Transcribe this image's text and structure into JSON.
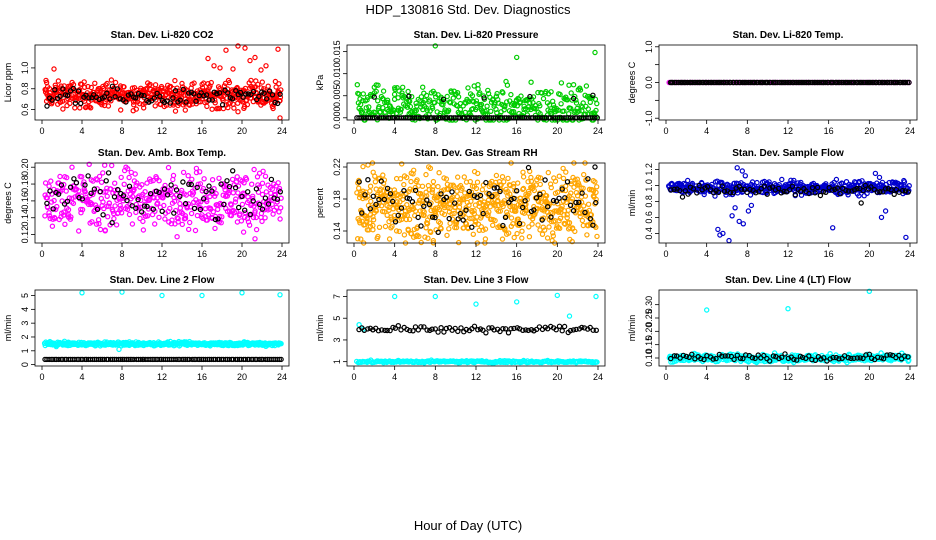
{
  "figure": {
    "title": "HDP_130816  Std. Dev. Diagnostics",
    "xlabel": "Hour of Day (UTC)"
  },
  "chart_data": [
    {
      "type": "scatter",
      "title": "Stan. Dev. Li-820 CO2",
      "ylabel": "Licor ppm",
      "xlim": [
        0,
        24
      ],
      "ylim": [
        0.5,
        1.22
      ],
      "xticks": [
        0,
        4,
        8,
        12,
        16,
        20,
        24
      ],
      "yticks": [
        0.6,
        0.8,
        1.0
      ],
      "ytick_labels": [
        "0.6",
        "0.8",
        "1.0"
      ],
      "colors": {
        "main": "#ff0000",
        "overlay": "#000000"
      },
      "series": [
        {
          "color": "#ff0000",
          "x_range": [
            0.3,
            23.9
          ],
          "center": 0.74,
          "spread": 0.06,
          "count": 520,
          "outliers": [
            [
              1.2,
              0.99
            ],
            [
              0.4,
              0.88
            ],
            [
              16.6,
              1.09
            ],
            [
              17.2,
              1.02
            ],
            [
              17.8,
              1.0
            ],
            [
              18.4,
              1.17
            ],
            [
              19.1,
              0.99
            ],
            [
              19.6,
              1.21
            ],
            [
              20.3,
              1.19
            ],
            [
              20.8,
              1.07
            ],
            [
              21.3,
              1.1
            ],
            [
              21.9,
              0.98
            ],
            [
              22.4,
              1.02
            ],
            [
              23.6,
              1.18
            ],
            [
              23.8,
              0.52
            ],
            [
              19.6,
              0.58
            ]
          ]
        },
        {
          "color": "#000000",
          "x_range": [
            0.5,
            23.8
          ],
          "center": 0.72,
          "spread": 0.04,
          "count": 90,
          "outliers": []
        }
      ]
    },
    {
      "type": "scatter",
      "title": "Stan. Dev. Li-820 Pressure",
      "ylabel": "kPa",
      "xlim": [
        0,
        24
      ],
      "ylim": [
        -0.0005,
        0.0165
      ],
      "xticks": [
        0,
        4,
        8,
        12,
        16,
        20,
        24
      ],
      "yticks": [
        0.0,
        0.005,
        0.01,
        0.015
      ],
      "ytick_labels": [
        "0.000",
        "0.005",
        "0.010",
        "0.015"
      ],
      "colors": {
        "main": "#00cd00",
        "overlay": "#000000"
      },
      "series": [
        {
          "color": "#00cd00",
          "x_range": [
            0.3,
            23.9
          ],
          "center": 0.0025,
          "spread": 0.0022,
          "count": 420,
          "outliers": [
            [
              8.0,
              0.0163
            ],
            [
              23.7,
              0.0148
            ],
            [
              16.0,
              0.0137
            ],
            [
              20.4,
              0.0079
            ],
            [
              12.2,
              0.0075
            ],
            [
              4.0,
              0.0068
            ]
          ]
        },
        {
          "color": "#000000",
          "x_range": [
            0.3,
            23.9
          ],
          "center": 0.0,
          "spread": 0.0,
          "count": 110,
          "outliers": [
            [
              2.0,
              0.0047
            ],
            [
              5.4,
              0.0049
            ],
            [
              12.8,
              0.0045
            ],
            [
              17.3,
              0.0048
            ],
            [
              21.6,
              0.0044
            ],
            [
              23.5,
              0.0051
            ],
            [
              8.8,
              0.0042
            ]
          ]
        }
      ]
    },
    {
      "type": "scatter",
      "title": "Stan. Dev. Li-820 Temp.",
      "ylabel": "degrees C",
      "xlim": [
        0,
        24
      ],
      "ylim": [
        -1.05,
        1.05
      ],
      "xticks": [
        0,
        4,
        8,
        12,
        16,
        20,
        24
      ],
      "yticks": [
        -1.0,
        -0.5,
        0.0,
        0.5,
        1.0
      ],
      "ytick_labels": [
        "-1.0",
        "",
        "0.0",
        "",
        "1.0"
      ],
      "colors": {
        "main": "#ff00ff",
        "overlay": "#000000"
      },
      "series": [
        {
          "color": "#ff00ff",
          "x_range": [
            0.3,
            23.9
          ],
          "center": 0.0,
          "spread": 0.0,
          "count": 80,
          "outliers": []
        },
        {
          "color": "#000000",
          "x_range": [
            0.4,
            23.9
          ],
          "center": 0.0,
          "spread": 0.0,
          "count": 150,
          "outliers": []
        }
      ]
    },
    {
      "type": "scatter",
      "title": "Stan. Dev. Amb. Box Temp.",
      "ylabel": "degrees C",
      "xlim": [
        0,
        24
      ],
      "ylim": [
        0.11,
        0.205
      ],
      "xticks": [
        0,
        4,
        8,
        12,
        16,
        20,
        24
      ],
      "yticks": [
        0.12,
        0.14,
        0.16,
        0.18,
        0.2
      ],
      "ytick_labels": [
        "0.12",
        "0.14",
        "0.16",
        "0.18",
        "0.20"
      ],
      "colors": {
        "main": "#ff00ff",
        "overlay": "#000000"
      },
      "series": [
        {
          "color": "#ff00ff",
          "x_range": [
            0.3,
            23.9
          ],
          "center": 0.162,
          "spread": 0.017,
          "count": 480,
          "outliers": [
            [
              21.3,
              0.115
            ],
            [
              3.0,
              0.2
            ]
          ]
        },
        {
          "color": "#000000",
          "x_range": [
            0.5,
            23.8
          ],
          "center": 0.162,
          "spread": 0.013,
          "count": 80,
          "outliers": []
        }
      ]
    },
    {
      "type": "scatter",
      "title": "Stan. Dev. Gas Stream RH",
      "ylabel": "percent",
      "xlim": [
        0,
        24
      ],
      "ylim": [
        0.125,
        0.225
      ],
      "xticks": [
        0,
        4,
        8,
        12,
        16,
        20,
        24
      ],
      "yticks": [
        0.14,
        0.18,
        0.22
      ],
      "ytick_labels": [
        "0.14",
        "0.18",
        "0.22"
      ],
      "colors": {
        "main": "#ffa500",
        "overlay": "#000000"
      },
      "series": [
        {
          "color": "#ffa500",
          "x_range": [
            0.3,
            23.9
          ],
          "center": 0.172,
          "spread": 0.022,
          "count": 700,
          "outliers": [
            [
              3.5,
              0.13
            ],
            [
              7.8,
              0.128
            ]
          ]
        },
        {
          "color": "#000000",
          "x_range": [
            0.5,
            23.8
          ],
          "center": 0.175,
          "spread": 0.017,
          "count": 85,
          "outliers": [
            [
              23.7,
              0.22
            ]
          ]
        }
      ]
    },
    {
      "type": "scatter",
      "title": "Stan. Dev. Sample Flow",
      "ylabel": "ml/min",
      "xlim": [
        0,
        24
      ],
      "ylim": [
        0.28,
        1.28
      ],
      "xticks": [
        0,
        4,
        8,
        12,
        16,
        20,
        24
      ],
      "yticks": [
        0.4,
        0.6,
        0.8,
        1.0,
        1.2
      ],
      "ytick_labels": [
        "0.4",
        "0.6",
        "0.8",
        "1.0",
        "1.2"
      ],
      "colors": {
        "main": "#0000cd",
        "overlay": "#000000"
      },
      "series": [
        {
          "color": "#0000cd",
          "x_range": [
            0.3,
            23.9
          ],
          "center": 0.97,
          "spread": 0.04,
          "count": 440,
          "outliers": [
            [
              5.1,
              0.45
            ],
            [
              5.3,
              0.38
            ],
            [
              5.6,
              0.4
            ],
            [
              6.2,
              0.31
            ],
            [
              6.5,
              0.62
            ],
            [
              7.2,
              0.55
            ],
            [
              7.6,
              0.52
            ],
            [
              7.0,
              1.22
            ],
            [
              7.5,
              1.18
            ],
            [
              7.8,
              1.12
            ],
            [
              8.1,
              0.68
            ],
            [
              8.4,
              0.75
            ],
            [
              6.8,
              0.72
            ],
            [
              16.4,
              0.47
            ],
            [
              21.2,
              0.6
            ],
            [
              21.6,
              0.68
            ],
            [
              20.6,
              1.15
            ],
            [
              21.0,
              1.1
            ],
            [
              23.6,
              0.35
            ]
          ]
        },
        {
          "color": "#000000",
          "x_range": [
            0.5,
            23.8
          ],
          "center": 0.94,
          "spread": 0.03,
          "count": 85,
          "outliers": [
            [
              19.2,
              0.78
            ]
          ]
        }
      ]
    },
    {
      "type": "scatter",
      "title": "Stan. Dev. Line 2 Flow",
      "ylabel": "ml/min",
      "xlim": [
        0,
        24
      ],
      "ylim": [
        -0.1,
        5.4
      ],
      "xticks": [
        0,
        4,
        8,
        12,
        16,
        20,
        24
      ],
      "yticks": [
        0,
        1,
        2,
        3,
        4,
        5
      ],
      "ytick_labels": [
        "0",
        "1",
        "2",
        "3",
        "4",
        "5"
      ],
      "colors": {
        "main": "#00ffff",
        "overlay": "#000000"
      },
      "series": [
        {
          "color": "#00ffff",
          "x_range": [
            0.3,
            23.9
          ],
          "center": 1.5,
          "spread": 0.07,
          "count": 420,
          "outliers": [
            [
              4.0,
              5.2
            ],
            [
              8.0,
              5.25
            ],
            [
              12.0,
              5.0
            ],
            [
              16.0,
              5.0
            ],
            [
              20.0,
              5.2
            ],
            [
              23.8,
              5.05
            ],
            [
              7.7,
              1.1
            ]
          ]
        },
        {
          "color": "#000000",
          "x_range": [
            0.3,
            23.9
          ],
          "center": 0.38,
          "spread": 0.0,
          "count": 120,
          "outliers": []
        }
      ]
    },
    {
      "type": "scatter",
      "title": "Stan. Dev. Line 3 Flow",
      "ylabel": "ml/min",
      "xlim": [
        0,
        24
      ],
      "ylim": [
        0.6,
        7.6
      ],
      "xticks": [
        0,
        4,
        8,
        12,
        16,
        20,
        24
      ],
      "yticks": [
        1,
        3,
        5,
        7
      ],
      "ytick_labels": [
        "1",
        "3",
        "5",
        "7"
      ],
      "colors": {
        "main": "#00ffff",
        "overlay": "#000000"
      },
      "series": [
        {
          "color": "#00ffff",
          "x_range": [
            0.3,
            23.9
          ],
          "center": 1.0,
          "spread": 0.05,
          "count": 240,
          "outliers": [
            [
              4.0,
              7.0
            ],
            [
              8.0,
              7.0
            ],
            [
              12.0,
              6.3
            ],
            [
              16.0,
              6.5
            ],
            [
              20.0,
              7.1
            ],
            [
              23.8,
              7.0
            ],
            [
              21.2,
              5.2
            ],
            [
              0.5,
              4.4
            ],
            [
              0.9,
              4.0
            ]
          ]
        },
        {
          "color": "#000000",
          "x_range": [
            0.5,
            23.8
          ],
          "center": 4.0,
          "spread": 0.15,
          "count": 85,
          "outliers": []
        }
      ]
    },
    {
      "type": "scatter",
      "title": "Stan. Dev. Line 4 (LT) Flow",
      "ylabel": "ml/min",
      "xlim": [
        0,
        24
      ],
      "ylim": [
        0.07,
        0.355
      ],
      "xticks": [
        0,
        4,
        8,
        12,
        16,
        20,
        24
      ],
      "yticks": [
        0.1,
        0.15,
        0.2,
        0.25,
        0.3
      ],
      "ytick_labels": [
        "0.10",
        "0.15",
        "0.20",
        "0.25",
        "0.30"
      ],
      "colors": {
        "main": "#00ffff",
        "overlay": "#000000"
      },
      "series": [
        {
          "color": "#00ffff",
          "x_range": [
            0.3,
            23.9
          ],
          "center": 0.1,
          "spread": 0.007,
          "count": 420,
          "outliers": [
            [
              4.0,
              0.28
            ],
            [
              12.0,
              0.285
            ],
            [
              20.0,
              0.35
            ]
          ]
        },
        {
          "color": "#000000",
          "x_range": [
            0.5,
            23.8
          ],
          "center": 0.102,
          "spread": 0.006,
          "count": 80,
          "outliers": []
        }
      ]
    }
  ]
}
